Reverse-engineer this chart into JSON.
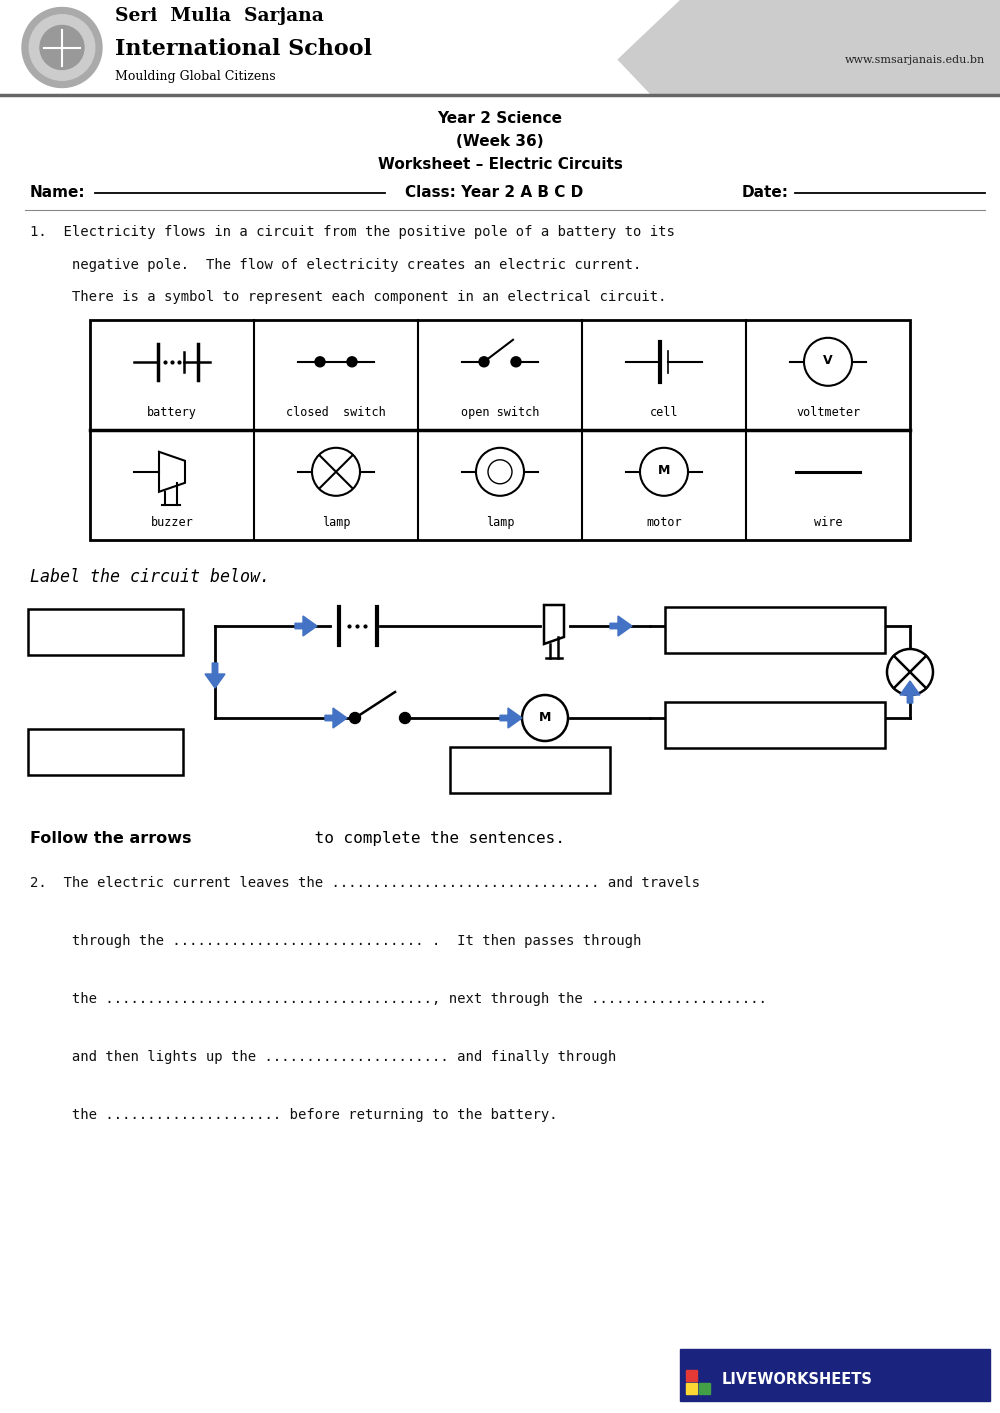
{
  "title_line1": "Year 2 Science",
  "title_line2": "(Week 36)",
  "title_line3": "Worksheet – Electric Circuits",
  "school_name": "Seri  Mulia  Sarjana",
  "school_type": "International School",
  "school_motto": "Moulding Global Citizens",
  "school_url": "www.smsarjanais.edu.bn",
  "name_label": "Name:",
  "class_label": "Class: Year 2 A B C D",
  "date_label": "Date:",
  "label_instruction": "Label the circuit below.",
  "follow_arrows": "Follow the arrows",
  "follow_text": " to complete the sentences.",
  "q2_line1": "2.  The electric current leaves the ................................ and travels",
  "q2_line2": "     through the .............................. .  It then passes through",
  "q2_line3": "     the ......................................., next through the .....................",
  "q2_line4": "     and then lights up the ...................... and finally through",
  "q2_line5": "     the ..................... before returning to the battery.",
  "bg_color": "#ffffff",
  "gray_header": "#cccccc",
  "blue_arrow": "#4472c4",
  "lw_blue": "#1a237e",
  "lw_red": "#e53935",
  "lw_green": "#43a047",
  "lw_yellow": "#fdd835",
  "lw_orange": "#ff6f00"
}
